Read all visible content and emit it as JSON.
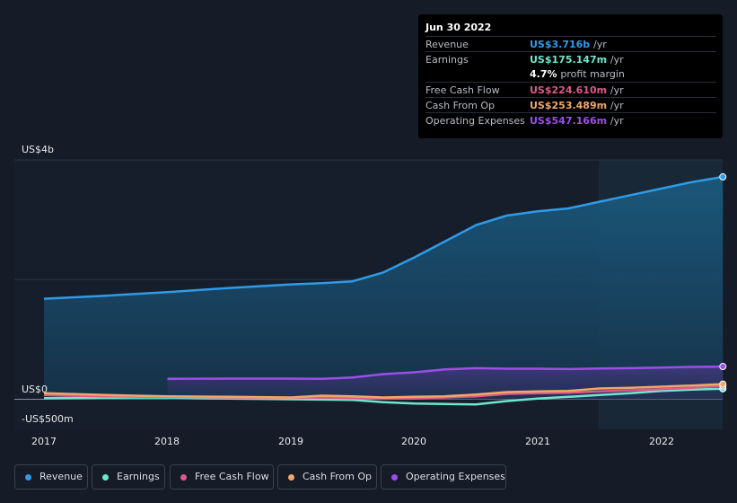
{
  "tooltip": {
    "date": "Jun 30 2022",
    "rows": [
      {
        "label": "Revenue",
        "value": "US$3.716b",
        "unit": "/yr",
        "color": "#2f9be8"
      },
      {
        "label": "Earnings",
        "value": "US$175.147m",
        "unit": "/yr",
        "color": "#6ee6cf"
      },
      {
        "label": "",
        "value": "4.7%",
        "unit": "profit margin",
        "color": "#ffffff"
      },
      {
        "label": "Free Cash Flow",
        "value": "US$224.610m",
        "unit": "/yr",
        "color": "#e0588a"
      },
      {
        "label": "Cash From Op",
        "value": "US$253.489m",
        "unit": "/yr",
        "color": "#f0a868"
      },
      {
        "label": "Operating Expenses",
        "value": "US$547.166m",
        "unit": "/yr",
        "color": "#9b4fe8"
      }
    ]
  },
  "legend": [
    {
      "label": "Revenue",
      "color": "#2f9be8"
    },
    {
      "label": "Earnings",
      "color": "#6ee6cf"
    },
    {
      "label": "Free Cash Flow",
      "color": "#e0588a"
    },
    {
      "label": "Cash From Op",
      "color": "#f0a868"
    },
    {
      "label": "Operating Expenses",
      "color": "#9b4fe8"
    }
  ],
  "chart_data": {
    "type": "area",
    "y_tick_labels": [
      "US$4b",
      "US$0",
      "-US$500m"
    ],
    "x_tick_labels": [
      "2017",
      "2018",
      "2019",
      "2020",
      "2021",
      "2022"
    ],
    "ylim": [
      -500,
      4000
    ],
    "y_unit": "US$ millions",
    "grid": true,
    "series": [
      {
        "name": "Revenue",
        "color": "#2f9be8",
        "x": [
          2017.0,
          2017.5,
          2018.0,
          2018.5,
          2019.0,
          2019.25,
          2019.5,
          2019.75,
          2020.0,
          2020.25,
          2020.5,
          2020.75,
          2021.0,
          2021.25,
          2021.5,
          2021.75,
          2022.0,
          2022.25,
          2022.5
        ],
        "y": [
          1680,
          1730,
          1790,
          1860,
          1920,
          1940,
          1970,
          2120,
          2370,
          2640,
          2910,
          3070,
          3140,
          3190,
          3300,
          3410,
          3520,
          3630,
          3716
        ]
      },
      {
        "name": "Earnings",
        "color": "#6ee6cf",
        "x": [
          2017.0,
          2017.5,
          2018.0,
          2018.5,
          2019.0,
          2019.5,
          2019.75,
          2020.0,
          2020.25,
          2020.5,
          2020.75,
          2021.0,
          2021.25,
          2021.5,
          2021.75,
          2022.0,
          2022.25,
          2022.5
        ],
        "y": [
          20,
          25,
          30,
          10,
          0,
          -10,
          -50,
          -70,
          -80,
          -85,
          -30,
          10,
          40,
          70,
          100,
          140,
          160,
          175
        ]
      },
      {
        "name": "Free Cash Flow",
        "color": "#e0588a",
        "x": [
          2017.0,
          2017.5,
          2018.0,
          2018.5,
          2019.0,
          2019.25,
          2019.5,
          2019.75,
          2020.0,
          2020.25,
          2020.5,
          2020.75,
          2021.0,
          2021.25,
          2021.5,
          2021.75,
          2022.0,
          2022.25,
          2022.5
        ],
        "y": [
          70,
          50,
          40,
          30,
          25,
          30,
          20,
          10,
          20,
          30,
          50,
          90,
          100,
          110,
          130,
          150,
          170,
          190,
          225
        ]
      },
      {
        "name": "Cash From Op",
        "color": "#f0a868",
        "x": [
          2017.0,
          2017.5,
          2018.0,
          2018.5,
          2019.0,
          2019.25,
          2019.5,
          2019.75,
          2020.0,
          2020.25,
          2020.5,
          2020.75,
          2021.0,
          2021.25,
          2021.5,
          2021.75,
          2022.0,
          2022.25,
          2022.5
        ],
        "y": [
          100,
          70,
          50,
          40,
          30,
          60,
          50,
          30,
          40,
          50,
          80,
          120,
          130,
          140,
          180,
          190,
          210,
          230,
          253
        ]
      },
      {
        "name": "Operating Expenses",
        "color": "#9b4fe8",
        "x": [
          2018.0,
          2018.5,
          2019.0,
          2019.25,
          2019.5,
          2019.75,
          2020.0,
          2020.25,
          2020.5,
          2020.75,
          2021.0,
          2021.25,
          2021.5,
          2021.75,
          2022.0,
          2022.25,
          2022.5
        ],
        "y": [
          340,
          345,
          345,
          340,
          365,
          420,
          450,
          500,
          520,
          510,
          510,
          505,
          515,
          520,
          530,
          540,
          547
        ]
      }
    ]
  }
}
